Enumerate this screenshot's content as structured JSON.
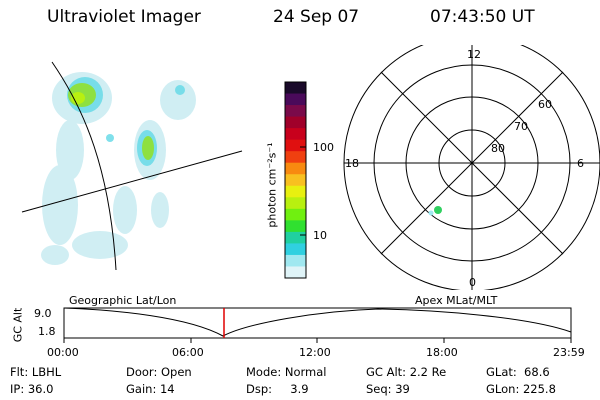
{
  "header": {
    "title": "Ultraviolet Imager",
    "date": "24 Sep 07",
    "time": "07:43:50 UT"
  },
  "colorbar": {
    "label": "photon cm⁻²s⁻¹",
    "ticks": [
      "100",
      "10"
    ],
    "colors": [
      "#1a0a2a",
      "#4a0a5a",
      "#7a0a4a",
      "#a0002a",
      "#c8001c",
      "#e01010",
      "#f04010",
      "#f88a10",
      "#f8c020",
      "#e8f010",
      "#b8f010",
      "#70f010",
      "#30e030",
      "#20d0a0",
      "#30d0e0",
      "#a0e8f0",
      "#e0f4f8"
    ]
  },
  "polar": {
    "mlt_labels": [
      "12",
      "18",
      "6",
      "0"
    ],
    "lat_labels": [
      "60",
      "70",
      "80"
    ]
  },
  "timeline": {
    "ylabel": "GC Alt",
    "y_ticks": [
      "9.0",
      "1.8"
    ],
    "left_label": "Geographic Lat/Lon",
    "right_label": "Apex MLat/MLT",
    "x_ticks": [
      "00:00",
      "06:00",
      "12:00",
      "18:00",
      "23:59"
    ],
    "marker_color": "#e00000"
  },
  "info": {
    "row1": [
      "Flt: LBHL",
      "Door: Open",
      "Mode: Normal",
      "GC Alt: 2.2 Re",
      "GLat:  68.6"
    ],
    "row2": [
      "IP: 36.0",
      "Gain: 14",
      "Dsp:     3.9",
      "Seq: 39",
      "GLon: 225.8"
    ]
  }
}
